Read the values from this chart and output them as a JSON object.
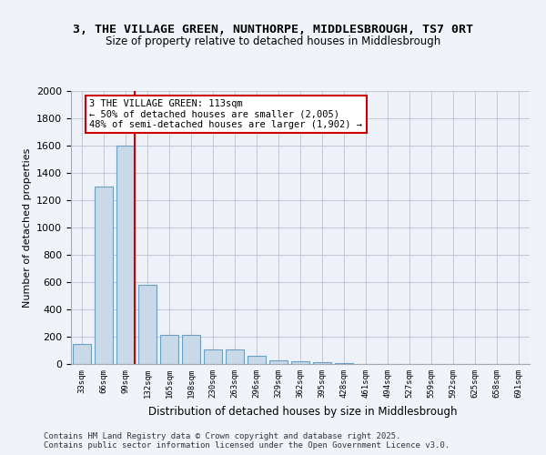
{
  "title1": "3, THE VILLAGE GREEN, NUNTHORPE, MIDDLESBROUGH, TS7 0RT",
  "title2": "Size of property relative to detached houses in Middlesbrough",
  "xlabel": "Distribution of detached houses by size in Middlesbrough",
  "ylabel": "Number of detached properties",
  "bins": [
    "33sqm",
    "66sqm",
    "99sqm",
    "132sqm",
    "165sqm",
    "198sqm",
    "230sqm",
    "263sqm",
    "296sqm",
    "329sqm",
    "362sqm",
    "395sqm",
    "428sqm",
    "461sqm",
    "494sqm",
    "527sqm",
    "559sqm",
    "592sqm",
    "625sqm",
    "658sqm",
    "691sqm"
  ],
  "values": [
    150,
    1300,
    1600,
    580,
    215,
    215,
    105,
    105,
    60,
    30,
    20,
    15,
    5,
    2,
    1,
    1,
    0,
    0,
    0,
    0,
    0
  ],
  "bar_color": "#c9d9e8",
  "bar_edge_color": "#6a9fc0",
  "grid_color": "#c0c8d8",
  "background_color": "#eef2f8",
  "fig_background_color": "#f0f4fa",
  "vline_color": "#cc0000",
  "annotation_text": "3 THE VILLAGE GREEN: 113sqm\n← 50% of detached houses are smaller (2,005)\n48% of semi-detached houses are larger (1,902) →",
  "annotation_box_color": "#ffffff",
  "annotation_box_edge": "#cc0000",
  "ylim": [
    0,
    2000
  ],
  "yticks": [
    0,
    200,
    400,
    600,
    800,
    1000,
    1200,
    1400,
    1600,
    1800,
    2000
  ],
  "footer1": "Contains HM Land Registry data © Crown copyright and database right 2025.",
  "footer2": "Contains public sector information licensed under the Open Government Licence v3.0."
}
